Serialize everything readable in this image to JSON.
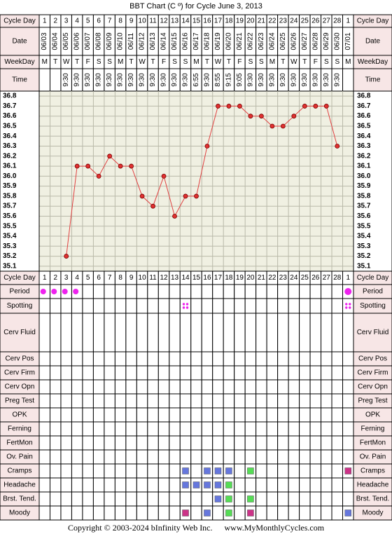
{
  "title": "BBT Chart (C º) for Cycle June 3, 2013",
  "row_labels": {
    "cycle_day": "Cycle Day",
    "date": "Date",
    "weekday": "WeekDay",
    "time": "Time"
  },
  "symptom_rows": [
    "Period",
    "Spotting",
    "Cerv Fluid",
    "Cerv Pos",
    "Cerv Firm",
    "Cerv Opn",
    "Preg Test",
    "OPK",
    "Ferning",
    "FertMon",
    "Ov. Pain",
    "Cramps",
    "Headache",
    "Brst. Tend.",
    "Moody"
  ],
  "columns": {
    "cycle_days": [
      "1",
      "2",
      "3",
      "4",
      "5",
      "6",
      "7",
      "8",
      "9",
      "10",
      "11",
      "12",
      "13",
      "14",
      "15",
      "16",
      "17",
      "18",
      "19",
      "20",
      "21",
      "22",
      "23",
      "24",
      "25",
      "26",
      "27",
      "28",
      "1"
    ],
    "dates": [
      "06/03",
      "06/04",
      "06/05",
      "06/06",
      "06/07",
      "06/08",
      "06/09",
      "06/10",
      "06/11",
      "06/12",
      "06/13",
      "06/14",
      "06/15",
      "06/16",
      "06/17",
      "06/18",
      "06/19",
      "06/20",
      "06/21",
      "06/22",
      "06/23",
      "06/24",
      "06/25",
      "06/26",
      "06/27",
      "06/28",
      "06/29",
      "06/30",
      "07/01"
    ],
    "weekdays": [
      "M",
      "T",
      "W",
      "T",
      "F",
      "S",
      "S",
      "M",
      "T",
      "W",
      "T",
      "F",
      "S",
      "S",
      "M",
      "T",
      "W",
      "T",
      "F",
      "S",
      "S",
      "M",
      "T",
      "W",
      "T",
      "F",
      "S",
      "S",
      "M"
    ],
    "times": [
      "",
      "",
      "9:30",
      "9:30",
      "9:30",
      "9:30",
      "9:30",
      "9:30",
      "9:30",
      "9:30",
      "9:30",
      "9:30",
      "9:30",
      "9:30",
      "6:55",
      "9:30",
      "8:55",
      "9:15",
      "9:05",
      "9:30",
      "9:30",
      "9:30",
      "9:30",
      "9:30",
      "9:30",
      "9:30",
      "9:30",
      "9:30",
      ""
    ]
  },
  "chart_data": {
    "type": "line",
    "title": "BBT Chart (C º) for Cycle June 3, 2013",
    "y_ticks": [
      "36.8",
      "36.7",
      "36.6",
      "36.5",
      "36.4",
      "36.3",
      "36.2",
      "36.1",
      "36.0",
      "35.9",
      "35.8",
      "35.7",
      "35.6",
      "35.5",
      "35.4",
      "35.3",
      "35.2",
      "35.1"
    ],
    "ylim": [
      35.1,
      36.8
    ],
    "series": [
      {
        "values": [
          null,
          null,
          35.2,
          36.1,
          36.1,
          36.0,
          36.2,
          36.1,
          36.1,
          35.8,
          35.7,
          36.0,
          35.6,
          35.8,
          35.8,
          36.3,
          36.7,
          36.7,
          36.7,
          36.6,
          36.6,
          36.5,
          36.5,
          36.6,
          36.7,
          36.7,
          36.7,
          36.3,
          null
        ]
      }
    ],
    "line_color": "#e04040",
    "marker_color": "#e03030",
    "grid": true
  },
  "symptom_marks": {
    "period": {
      "days": [
        1,
        2,
        3,
        4
      ],
      "last": true,
      "color": "#ee22ee"
    },
    "spotting": {
      "days": [
        14
      ],
      "last": true,
      "color": "#ee22ee"
    },
    "cramps": [
      {
        "day": 14,
        "color": "#6677dd"
      },
      {
        "day": 16,
        "color": "#6677dd"
      },
      {
        "day": 17,
        "color": "#6677dd"
      },
      {
        "day": 18,
        "color": "#6677dd"
      },
      {
        "day": 20,
        "color": "#55dd55"
      },
      {
        "day": 29,
        "color": "#cc3388"
      }
    ],
    "headache": [
      {
        "day": 14,
        "color": "#6677dd"
      },
      {
        "day": 15,
        "color": "#6677dd"
      },
      {
        "day": 16,
        "color": "#6677dd"
      },
      {
        "day": 17,
        "color": "#6677dd"
      },
      {
        "day": 18,
        "color": "#55dd55"
      }
    ],
    "brst_tend": [
      {
        "day": 17,
        "color": "#6677dd"
      },
      {
        "day": 18,
        "color": "#55dd55"
      },
      {
        "day": 20,
        "color": "#55dd55"
      }
    ],
    "moody": [
      {
        "day": 14,
        "color": "#cc3388"
      },
      {
        "day": 16,
        "color": "#6677dd"
      },
      {
        "day": 18,
        "color": "#55dd55"
      },
      {
        "day": 20,
        "color": "#cc3388"
      },
      {
        "day": 29,
        "color": "#6677dd"
      }
    ]
  },
  "colors": {
    "label_bg": "#f7e6e6",
    "plot_bg": "#f0f0e2",
    "grid": "#b9b9a9",
    "border": "#000000"
  },
  "footer": {
    "copyright": "Copyright © 2003-2024 bInfinity Web Inc.",
    "site": "www.MyMonthlyCycles.com"
  }
}
